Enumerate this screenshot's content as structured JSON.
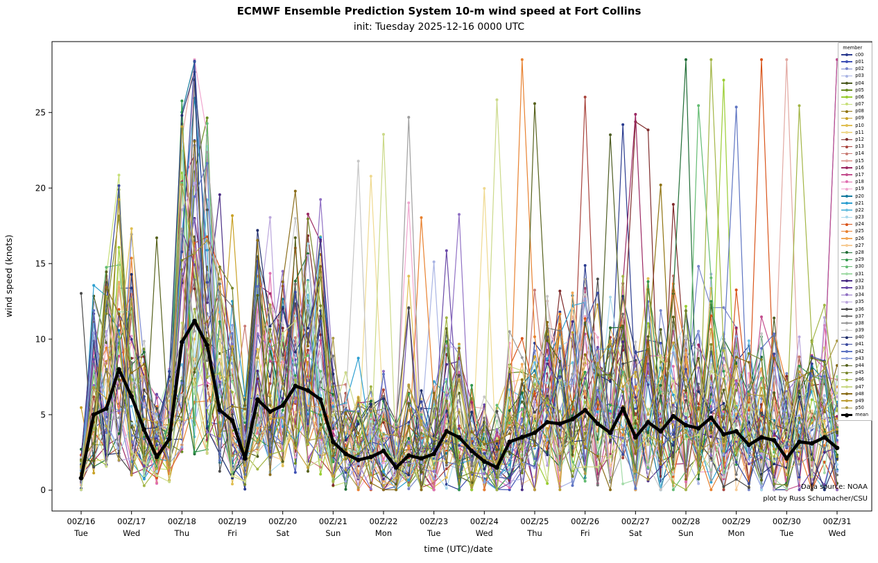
{
  "figure": {
    "background": "#ffffff",
    "frame_color": "#000000"
  },
  "chart_data": {
    "type": "line",
    "title": "ECMWF Ensemble Prediction System 10-m wind speed at Fort Collins",
    "subtitle": "init: Tuesday 2025-12-16 0000 UTC",
    "xlabel": "time (UTC)/date",
    "ylabel": "wind speed (knots)",
    "legend_title": "member",
    "legend_position": "upper right",
    "grid": false,
    "annotations": {
      "data_source": "Data source: NOAA",
      "credit": "plot by Russ Schumacher/CSU"
    },
    "yticks": [
      0,
      5,
      10,
      15,
      20,
      25
    ],
    "ylim": [
      -1.4,
      29.7
    ],
    "x_hours_total": 360,
    "x_step_hours": 6,
    "xticks": [
      {
        "label": "00Z/16",
        "day": "Tue"
      },
      {
        "label": "00Z/17",
        "day": "Wed"
      },
      {
        "label": "00Z/18",
        "day": "Thu"
      },
      {
        "label": "00Z/19",
        "day": "Fri"
      },
      {
        "label": "00Z/20",
        "day": "Sat"
      },
      {
        "label": "00Z/21",
        "day": "Sun"
      },
      {
        "label": "00Z/22",
        "day": "Mon"
      },
      {
        "label": "00Z/23",
        "day": "Tue"
      },
      {
        "label": "00Z/24",
        "day": "Wed"
      },
      {
        "label": "00Z/25",
        "day": "Thu"
      },
      {
        "label": "00Z/26",
        "day": "Fri"
      },
      {
        "label": "00Z/27",
        "day": "Sat"
      },
      {
        "label": "00Z/28",
        "day": "Sun"
      },
      {
        "label": "00Z/29",
        "day": "Mon"
      },
      {
        "label": "00Z/30",
        "day": "Tue"
      },
      {
        "label": "00Z/31",
        "day": "Wed"
      }
    ],
    "mean_values": [
      0.8,
      5.0,
      5.4,
      8.0,
      6.2,
      4.0,
      2.2,
      3.4,
      9.8,
      11.2,
      9.6,
      5.3,
      4.6,
      2.1,
      6.0,
      5.2,
      5.6,
      6.9,
      6.6,
      6.0,
      3.2,
      2.4,
      2.0,
      2.2,
      2.6,
      1.5,
      2.3,
      2.1,
      2.4,
      3.9,
      3.5,
      2.6,
      1.9,
      1.5,
      3.2,
      3.5,
      3.8,
      4.5,
      4.4,
      4.7,
      5.3,
      4.4,
      3.8,
      5.4,
      3.5,
      4.5,
      3.9,
      4.9,
      4.3,
      4.1,
      4.8,
      3.7,
      3.9,
      3.0,
      3.5,
      3.3,
      2.1,
      3.2,
      3.1,
      3.5,
      2.8
    ],
    "members": [
      {
        "name": "c00",
        "color": "#2a3b8f"
      },
      {
        "name": "p01",
        "color": "#3f51b5"
      },
      {
        "name": "p02",
        "color": "#7986cb"
      },
      {
        "name": "p03",
        "color": "#a9b4e4"
      },
      {
        "name": "p04",
        "color": "#4e5d23"
      },
      {
        "name": "p05",
        "color": "#6b8e23"
      },
      {
        "name": "p06",
        "color": "#9acd32"
      },
      {
        "name": "p07",
        "color": "#c8e07a"
      },
      {
        "name": "p08",
        "color": "#8f7310"
      },
      {
        "name": "p09",
        "color": "#c9a227"
      },
      {
        "name": "p10",
        "color": "#e0bf53"
      },
      {
        "name": "p11",
        "color": "#efd98f"
      },
      {
        "name": "p12",
        "color": "#7e2a2a"
      },
      {
        "name": "p13",
        "color": "#a8433c"
      },
      {
        "name": "p14",
        "color": "#c97b74"
      },
      {
        "name": "p15",
        "color": "#e2a8a2"
      },
      {
        "name": "p16",
        "color": "#9c2963"
      },
      {
        "name": "p17",
        "color": "#c4508f"
      },
      {
        "name": "p18",
        "color": "#e06eb0"
      },
      {
        "name": "p19",
        "color": "#f0a6cf"
      },
      {
        "name": "p20",
        "color": "#157a9e"
      },
      {
        "name": "p21",
        "color": "#2d9fd0"
      },
      {
        "name": "p22",
        "color": "#6cc0e0"
      },
      {
        "name": "p23",
        "color": "#a8d8ec"
      },
      {
        "name": "p24",
        "color": "#d9541a"
      },
      {
        "name": "p25",
        "color": "#e8812f"
      },
      {
        "name": "p26",
        "color": "#f2a858"
      },
      {
        "name": "p27",
        "color": "#f7cc96"
      },
      {
        "name": "p28",
        "color": "#1f6d35"
      },
      {
        "name": "p29",
        "color": "#33984d"
      },
      {
        "name": "p30",
        "color": "#63bb72"
      },
      {
        "name": "p31",
        "color": "#a3dba8"
      },
      {
        "name": "p32",
        "color": "#4a2d85"
      },
      {
        "name": "p33",
        "color": "#6a4aa8"
      },
      {
        "name": "p34",
        "color": "#9070c4"
      },
      {
        "name": "p35",
        "color": "#bba6dc"
      },
      {
        "name": "p36",
        "color": "#4a4a4a"
      },
      {
        "name": "p37",
        "color": "#757575"
      },
      {
        "name": "p38",
        "color": "#9e9e9e"
      },
      {
        "name": "p39",
        "color": "#c6c6c6"
      },
      {
        "name": "p40",
        "color": "#22306e"
      },
      {
        "name": "p41",
        "color": "#3a4a9e"
      },
      {
        "name": "p42",
        "color": "#5e74c2"
      },
      {
        "name": "p43",
        "color": "#93a3dc"
      },
      {
        "name": "p44",
        "color": "#56611c"
      },
      {
        "name": "p45",
        "color": "#78862c"
      },
      {
        "name": "p46",
        "color": "#a2b545"
      },
      {
        "name": "p47",
        "color": "#cbd989"
      },
      {
        "name": "p48",
        "color": "#8a6d1a"
      },
      {
        "name": "p49",
        "color": "#bfa03a"
      },
      {
        "name": "p50",
        "color": "#ab9a45"
      },
      {
        "name": "mean",
        "color": "#000000",
        "is_mean": true
      }
    ],
    "member_variation": {
      "seed_base": 1000,
      "seed_step": 77,
      "mult_min": 0.25,
      "mult_range": 2.4,
      "mult_power": 1.6,
      "noise_amp": 2.2,
      "noise_bias": 0.38,
      "growth_base": 0.8,
      "growth_rate": 1.6,
      "spike_prob": 0.025,
      "spike_base": 4,
      "spike_range": 10,
      "cap": 28.5
    }
  }
}
